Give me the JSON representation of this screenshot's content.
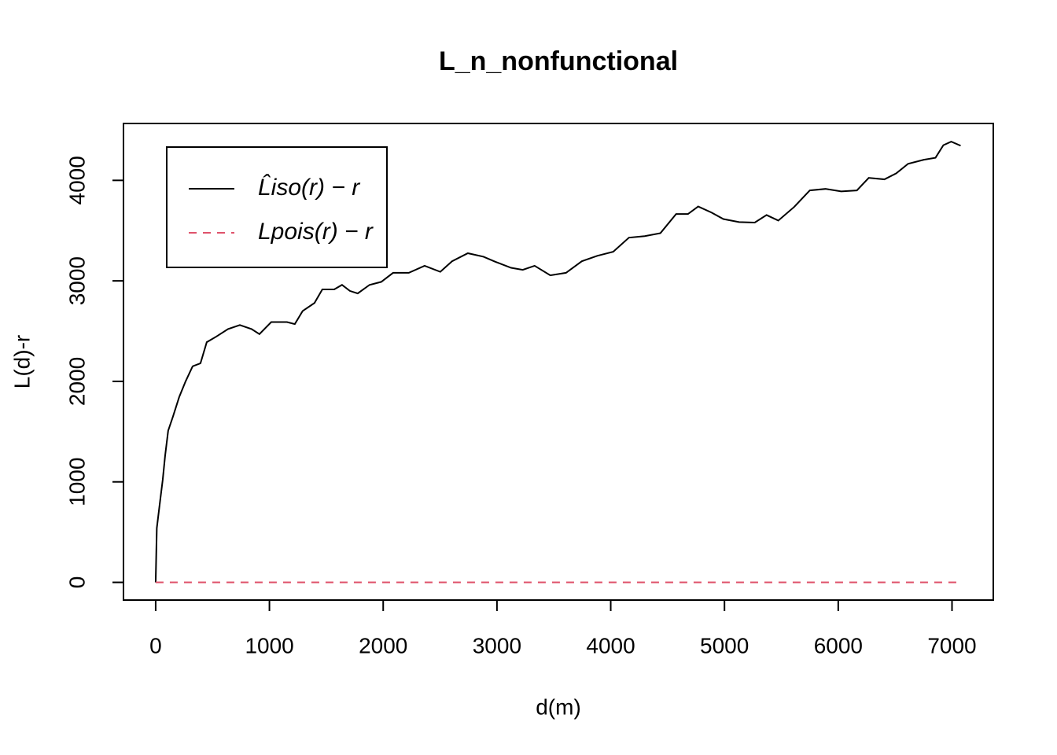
{
  "chart_data": {
    "type": "line",
    "title": "L_n_nonfunctional",
    "x_label": "d(m)",
    "y_label": "L(d)-r",
    "xlim": [
      -283,
      7363
    ],
    "ylim": [
      -176,
      4566
    ],
    "xticks": [
      0,
      1000,
      2000,
      3000,
      4000,
      5000,
      6000,
      7000
    ],
    "yticks": [
      0,
      1000,
      2000,
      3000,
      4000
    ],
    "legend": "top-left",
    "series": [
      {
        "name": "L̂iso(r) − r",
        "color": "#000000",
        "dash": "solid",
        "x": [
          0,
          10,
          40,
          62,
          83,
          110,
          152,
          207,
          263,
          325,
          394,
          449,
          532,
          636,
          740,
          843,
          912,
          1016,
          1154,
          1223,
          1292,
          1396,
          1465,
          1569,
          1638,
          1707,
          1776,
          1880,
          1983,
          2087,
          2225,
          2364,
          2502,
          2605,
          2744,
          2882,
          2985,
          3124,
          3227,
          3331,
          3469,
          3607,
          3746,
          3884,
          4022,
          4160,
          4299,
          4437,
          4575,
          4679,
          4769,
          4886,
          4990,
          5128,
          5266,
          5370,
          5473,
          5612,
          5750,
          5888,
          6026,
          6164,
          6268,
          6406,
          6510,
          6614,
          6752,
          6855,
          6924,
          6993,
          7076
        ],
        "values": [
          0,
          540,
          820,
          1020,
          1260,
          1510,
          1650,
          1845,
          2000,
          2150,
          2180,
          2390,
          2445,
          2520,
          2560,
          2520,
          2470,
          2590,
          2590,
          2570,
          2700,
          2780,
          2915,
          2915,
          2960,
          2900,
          2875,
          2960,
          2990,
          3080,
          3080,
          3150,
          3090,
          3195,
          3275,
          3240,
          3190,
          3130,
          3110,
          3150,
          3055,
          3080,
          3195,
          3250,
          3290,
          3430,
          3445,
          3475,
          3665,
          3665,
          3740,
          3680,
          3615,
          3585,
          3580,
          3655,
          3600,
          3735,
          3900,
          3915,
          3890,
          3900,
          4025,
          4010,
          4070,
          4165,
          4205,
          4225,
          4350,
          4385,
          4345
        ]
      },
      {
        "name": "Lpois(r) − r",
        "color": "#DF536B",
        "dash": "dashed",
        "x": [
          0,
          7080
        ],
        "values": [
          0,
          0
        ]
      }
    ]
  }
}
